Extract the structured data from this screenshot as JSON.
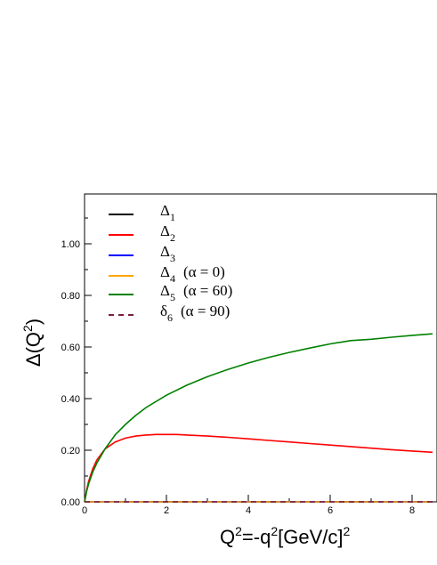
{
  "chart_data": {
    "type": "line",
    "title": "",
    "xlabel": "Q²=-q²[GeV/c]²",
    "ylabel": "Δ(Q²)",
    "xlim": [
      0,
      8.5
    ],
    "ylim": [
      0,
      1.2
    ],
    "grid": false,
    "legend_position": "top-left",
    "x_ticks": [
      "0",
      "2",
      "4",
      "6",
      "8"
    ],
    "y_ticks": [
      "0.00",
      "0.20",
      "0.40",
      "0.60",
      "0.80",
      "1.00"
    ],
    "series": [
      {
        "name": "Δ1",
        "color": "#000000",
        "dash": "solid",
        "x": [
          0,
          8.5
        ],
        "y": [
          0,
          0
        ]
      },
      {
        "name": "Δ2",
        "color": "#ff0000",
        "dash": "solid",
        "x": [
          0,
          0.05,
          0.1,
          0.2,
          0.3,
          0.5,
          0.75,
          1.0,
          1.25,
          1.5,
          1.75,
          2.0,
          2.25,
          2.5,
          3.0,
          3.5,
          4.0,
          4.5,
          5.0,
          5.5,
          6.0,
          6.5,
          7.0,
          7.5,
          8.0,
          8.5
        ],
        "y": [
          0,
          0.045,
          0.08,
          0.128,
          0.162,
          0.205,
          0.232,
          0.247,
          0.255,
          0.259,
          0.261,
          0.261,
          0.261,
          0.259,
          0.255,
          0.25,
          0.244,
          0.238,
          0.232,
          0.226,
          0.22,
          0.214,
          0.208,
          0.202,
          0.197,
          0.192
        ]
      },
      {
        "name": "Δ3",
        "color": "#0000ff",
        "dash": "solid",
        "x": [
          0,
          8.5
        ],
        "y": [
          0,
          0
        ]
      },
      {
        "name": "Δ4 (α = 0)",
        "color": "#ffa500",
        "dash": "solid",
        "x": [
          0,
          8.5
        ],
        "y": [
          0,
          0
        ]
      },
      {
        "name": "Δ5 (α = 60)",
        "color": "#008000",
        "dash": "solid",
        "x": [
          0,
          0.05,
          0.1,
          0.2,
          0.3,
          0.5,
          0.75,
          1.0,
          1.25,
          1.5,
          2.0,
          2.5,
          3.0,
          3.5,
          4.0,
          4.5,
          5.0,
          5.5,
          6.0,
          6.5,
          7.0,
          7.5,
          8.0,
          8.5
        ],
        "y": [
          0,
          0.04,
          0.07,
          0.115,
          0.15,
          0.205,
          0.26,
          0.3,
          0.335,
          0.365,
          0.413,
          0.452,
          0.485,
          0.513,
          0.538,
          0.56,
          0.579,
          0.596,
          0.612,
          0.625,
          0.63,
          0.638,
          0.645,
          0.651
        ]
      },
      {
        "name": "δ6 (α = 90)",
        "color": "#7a1f3d",
        "dash": "dashed",
        "x": [
          0,
          8.5
        ],
        "y": [
          0,
          0
        ]
      }
    ],
    "legend": [
      {
        "symbol": "Δ",
        "sub": "1",
        "suffix": ""
      },
      {
        "symbol": "Δ",
        "sub": "2",
        "suffix": ""
      },
      {
        "symbol": "Δ",
        "sub": "3",
        "suffix": ""
      },
      {
        "symbol": "Δ",
        "sub": "4",
        "suffix": "(α = 0)"
      },
      {
        "symbol": "Δ",
        "sub": "5",
        "suffix": "(α = 60)"
      },
      {
        "symbol": "δ",
        "sub": "6",
        "suffix": "(α = 90)"
      }
    ],
    "xlabel_parts": {
      "a": "Q",
      "a_sup": "2",
      "b": "=-q",
      "b_sup": "2",
      "c": "[GeV/c]",
      "c_sup": "2"
    },
    "ylabel_parts": {
      "a": "Δ(Q",
      "a_sup": "2",
      "b": ")"
    }
  }
}
